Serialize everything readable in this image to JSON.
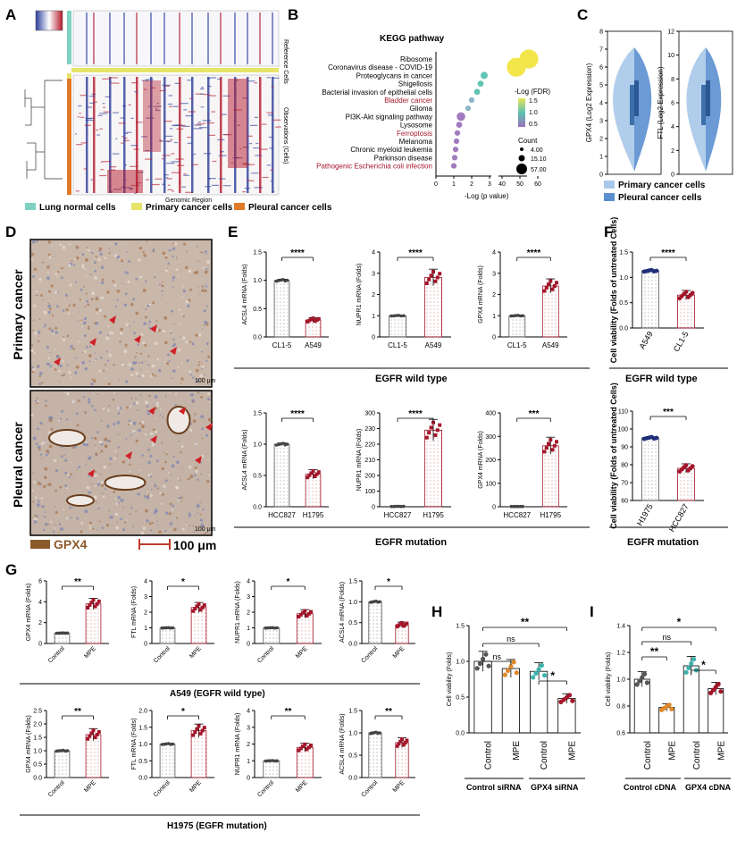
{
  "panels": {
    "A": {
      "label": "A",
      "legend": [
        "Lung normal cells",
        "Primary cancer cells",
        "Pleural cancer cells"
      ],
      "legend_colors": [
        "#7fd1c1",
        "#e6e36a",
        "#e07a27"
      ],
      "xlabel": "Genomic Region",
      "row_labels": [
        "Reference Cells",
        "Observations (Cells)"
      ]
    },
    "B": {
      "label": "B",
      "title": "KEGG pathway",
      "xlabel": "-Log (p value)",
      "fdr_title": "-Log (FDR)",
      "fdr_ticks": [
        "1.5",
        "1.0",
        "0.5"
      ],
      "count_title": "Count",
      "count_ticks": [
        "4.00",
        "15.10",
        "57.00"
      ]
    },
    "C": {
      "label": "C",
      "legend": [
        "Primary cancer cells",
        "Pleural cancer cells"
      ],
      "legend_colors": [
        "#a9c8ea",
        "#5b8fd0"
      ]
    },
    "D": {
      "label": "D",
      "row_labels": [
        "Primary cancer",
        "Pleural cancer"
      ],
      "scale_text": "100 μm",
      "scale_small": "100 μm",
      "legend_gpx4": "GPX4",
      "gpx4_color": "#8b5a2b"
    },
    "E": {
      "label": "E",
      "group_wt": "EGFR wild type",
      "group_mut": "EGFR mutation"
    },
    "F": {
      "label": "F",
      "group_wt": "EGFR wild type",
      "group_mut": "EGFR mutation"
    },
    "G": {
      "label": "G",
      "group_wt": "A549 (EGFR wild type)",
      "group_mut": "H1975 (EGFR mutation)"
    },
    "H": {
      "label": "H",
      "group1": "Control siRNA",
      "group2": "GPX4 siRNA"
    },
    "I": {
      "label": "I",
      "group1": "Control cDNA",
      "group2": "GPX4 cDNA"
    }
  },
  "chart_data": [
    {
      "panel": "B",
      "type": "scatter",
      "title": "KEGG pathway",
      "xlabel": "-Log (p value)",
      "x_ticks": [
        "0",
        "1",
        "2",
        "3",
        "40",
        "50",
        "60"
      ],
      "categories": [
        "Ribosome",
        "Coronavirus disease - COVID-19",
        "Proteoglycans in cancer",
        "Shigellosis",
        "Bacterial invasion of epithelial cells",
        "Bladder cancer",
        "Glioma",
        "PI3K-Akt signaling pathway",
        "Lysosome",
        "Ferroptosis",
        "Melanoma",
        "Chronic myeloid leukemia",
        "Parkinson disease",
        "Pathogenic Escherichia coli infection"
      ],
      "highlight": [
        false,
        false,
        false,
        false,
        false,
        true,
        false,
        false,
        false,
        true,
        false,
        false,
        false,
        true
      ],
      "x": [
        55,
        48,
        2.7,
        2.5,
        2.3,
        2.0,
        1.8,
        1.4,
        1.3,
        1.2,
        1.15,
        1.1,
        1.05,
        1.0
      ],
      "size": [
        57,
        57,
        8,
        6,
        6,
        5,
        5,
        12,
        6,
        5,
        5,
        5,
        5,
        5
      ],
      "fdr": [
        1.5,
        1.5,
        1.1,
        1.0,
        1.0,
        0.8,
        0.8,
        0.5,
        0.5,
        0.5,
        0.5,
        0.5,
        0.5,
        0.5
      ]
    },
    {
      "panel": "C",
      "type": "violin",
      "ylabel": "GPX4 (Log2 Expression)",
      "y_ticks": [
        "0",
        "1",
        "2",
        "3",
        "4",
        "5",
        "6",
        "7",
        "8"
      ]
    },
    {
      "panel": "C",
      "type": "violin",
      "ylabel": "FTL (Log2 Expression)",
      "y_ticks": [
        "0",
        "2",
        "4",
        "6",
        "8",
        "10",
        "12"
      ]
    },
    {
      "panel": "E",
      "type": "bar",
      "ylabel": "ACSL4 mRNA (Folds)",
      "categories": [
        "CL1-5",
        "A549"
      ],
      "values": [
        1.0,
        0.3
      ],
      "ylim": [
        0,
        1.5
      ],
      "y_ticks": [
        "0.0",
        "0.5",
        "1.0",
        "1.5"
      ],
      "sig": "****"
    },
    {
      "panel": "E",
      "type": "bar",
      "ylabel": "NUPR1 mRNA (Folds)",
      "categories": [
        "CL1-5",
        "A549"
      ],
      "values": [
        1.0,
        2.8
      ],
      "ylim": [
        0,
        4
      ],
      "y_ticks": [
        "0",
        "1",
        "2",
        "3",
        "4"
      ],
      "sig": "****"
    },
    {
      "panel": "E",
      "type": "bar",
      "ylabel": "GPX4 mRNA (Folds)",
      "categories": [
        "CL1-5",
        "A549"
      ],
      "values": [
        1.0,
        2.4
      ],
      "ylim": [
        0,
        4
      ],
      "y_ticks": [
        "0",
        "1",
        "2",
        "3",
        "4"
      ],
      "sig": "****"
    },
    {
      "panel": "E",
      "type": "bar",
      "ylabel": "ACSL4 mRNA (Folds)",
      "categories": [
        "HCC827",
        "H1795"
      ],
      "values": [
        1.0,
        0.52
      ],
      "ylim": [
        0,
        1.5
      ],
      "y_ticks": [
        "0.0",
        "0.5",
        "1.0",
        "1.5"
      ],
      "sig": "****"
    },
    {
      "panel": "E",
      "type": "bar",
      "ylabel": "NUPR1 mRNA (Folds)",
      "categories": [
        "HCC827",
        "H1795"
      ],
      "values": [
        1.0,
        245
      ],
      "ylim": [
        0,
        300
      ],
      "y_ticks": [
        "0",
        "100",
        "200",
        "210",
        "220",
        "230",
        "300"
      ],
      "sig": "****"
    },
    {
      "panel": "E",
      "type": "bar",
      "ylabel": "GPX4 mRNA (Folds)",
      "categories": [
        "HCC827",
        "H1795"
      ],
      "values": [
        1.0,
        260
      ],
      "ylim": [
        0,
        400
      ],
      "y_ticks": [
        "0",
        "100",
        "200",
        "300",
        "400"
      ],
      "sig": "***"
    },
    {
      "panel": "F",
      "type": "bar",
      "ylabel": "Cell viability (Folds of untreated Cells)",
      "categories": [
        "A549",
        "CL1-5"
      ],
      "values": [
        1.13,
        0.65
      ],
      "ylim": [
        0,
        1.5
      ],
      "y_ticks": [
        "0.0",
        "0.5",
        "1.0",
        "1.5"
      ],
      "sig": "****"
    },
    {
      "panel": "F",
      "type": "bar",
      "ylabel": "Cell viability (Folds of untreated Cells)",
      "categories": [
        "H1975",
        "HCC827"
      ],
      "values": [
        95,
        78
      ],
      "ylim": [
        60,
        110
      ],
      "y_ticks": [
        "60",
        "70",
        "80",
        "90",
        "100",
        "110"
      ],
      "sig": "***"
    },
    {
      "panel": "G",
      "type": "bar",
      "ylabel": "GPX4 mRNA (Folds)",
      "categories": [
        "Control",
        "MPE"
      ],
      "values": [
        1.0,
        3.8
      ],
      "ylim": [
        0,
        6
      ],
      "y_ticks": [
        "0",
        "2",
        "4",
        "6"
      ],
      "sig": "**"
    },
    {
      "panel": "G",
      "type": "bar",
      "ylabel": "FTL mRNA (Folds)",
      "categories": [
        "Control",
        "MPE"
      ],
      "values": [
        1.0,
        2.3
      ],
      "ylim": [
        0,
        4
      ],
      "y_ticks": [
        "0",
        "1",
        "2",
        "3",
        "4"
      ],
      "sig": "*"
    },
    {
      "panel": "G",
      "type": "bar",
      "ylabel": "NUPR1 mRNA (Folds)",
      "categories": [
        "Control",
        "MPE"
      ],
      "values": [
        1.0,
        1.9
      ],
      "ylim": [
        0,
        4
      ],
      "y_ticks": [
        "0",
        "1",
        "2",
        "3",
        "4"
      ],
      "sig": "*"
    },
    {
      "panel": "G",
      "type": "bar",
      "ylabel": "ACSL4 mRNA (Folds)",
      "categories": [
        "Control",
        "MPE"
      ],
      "values": [
        1.0,
        0.45
      ],
      "ylim": [
        0,
        1.5
      ],
      "y_ticks": [
        "0.0",
        "0.5",
        "1.0",
        "1.5"
      ],
      "sig": "*"
    },
    {
      "panel": "G",
      "type": "bar",
      "ylabel": "GPX4 mRNA (Folds)",
      "categories": [
        "Control",
        "MPE"
      ],
      "values": [
        1.0,
        1.6
      ],
      "ylim": [
        0,
        2.5
      ],
      "y_ticks": [
        "0.0",
        "0.5",
        "1.0",
        "1.5",
        "2.0",
        "2.5"
      ],
      "sig": "**"
    },
    {
      "panel": "G",
      "type": "bar",
      "ylabel": "FTL mRNA (Folds)",
      "categories": [
        "Control",
        "MPE"
      ],
      "values": [
        1.0,
        1.4
      ],
      "ylim": [
        0,
        2.0
      ],
      "y_ticks": [
        "0.0",
        "0.5",
        "1.0",
        "1.5",
        "2.0"
      ],
      "sig": "*"
    },
    {
      "panel": "G",
      "type": "bar",
      "ylabel": "NUPR1 mRNA (Folds)",
      "categories": [
        "Control",
        "MPE"
      ],
      "values": [
        1.0,
        1.8
      ],
      "ylim": [
        0,
        4
      ],
      "y_ticks": [
        "0",
        "1",
        "2",
        "3",
        "4"
      ],
      "sig": "**"
    },
    {
      "panel": "G",
      "type": "bar",
      "ylabel": "ACSL4 mRNA (Folds)",
      "categories": [
        "Control",
        "MPE"
      ],
      "values": [
        1.0,
        0.78
      ],
      "ylim": [
        0,
        1.5
      ],
      "y_ticks": [
        "0.0",
        "0.5",
        "1.0",
        "1.5"
      ],
      "sig": "**"
    },
    {
      "panel": "H",
      "type": "bar",
      "ylabel": "Cell viability (Folds)",
      "categories": [
        "Control",
        "MPE",
        "Control",
        "MPE"
      ],
      "values": [
        1.0,
        0.9,
        0.86,
        0.48
      ],
      "ylim": [
        0,
        1.5
      ],
      "y_ticks": [
        "0.0",
        "0.5",
        "1.0",
        "1.5"
      ],
      "colors": [
        "#555555",
        "#e08a2d",
        "#3fb3ad",
        "#a3162a"
      ]
    },
    {
      "panel": "I",
      "type": "bar",
      "ylabel": "Cell viability (Folds)",
      "categories": [
        "Control",
        "MPE",
        "Control",
        "MPE"
      ],
      "values": [
        1.0,
        0.79,
        1.1,
        0.93
      ],
      "ylim": [
        0.6,
        1.4
      ],
      "y_ticks": [
        "0.6",
        "0.8",
        "1.0",
        "1.2",
        "1.4"
      ],
      "colors": [
        "#555555",
        "#e08a2d",
        "#3fb3ad",
        "#a3162a"
      ]
    }
  ]
}
